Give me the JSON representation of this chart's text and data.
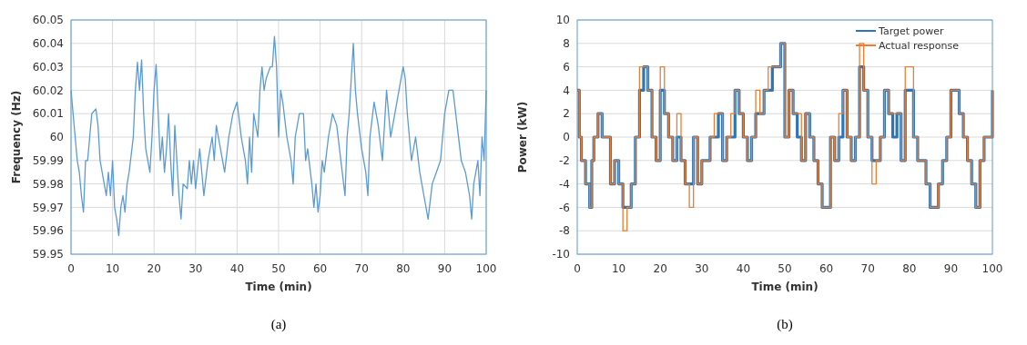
{
  "chart_data": [
    {
      "type": "line",
      "xlabel": "Time (min)",
      "ylabel": "Frequency (Hz)",
      "annotations": [
        "(a)"
      ],
      "xlim": [
        0,
        100
      ],
      "xticks": [
        0,
        10,
        20,
        30,
        40,
        50,
        60,
        70,
        80,
        90,
        100
      ],
      "ylim": [
        59.95,
        60.05
      ],
      "yticks": [
        59.95,
        59.96,
        59.97,
        59.98,
        59.99,
        60,
        60.01,
        60.02,
        60.03,
        60.04,
        60.05
      ],
      "grid": true,
      "legend": false,
      "x": [
        0,
        0.5,
        1,
        1.5,
        2,
        2.5,
        3,
        3.5,
        4,
        4.5,
        5,
        6,
        6.5,
        7,
        8,
        8.5,
        9,
        9.5,
        10,
        10.5,
        11,
        11.5,
        12,
        12.5,
        13,
        13.5,
        14,
        15,
        15.5,
        16,
        16.5,
        17,
        17.5,
        18,
        18.5,
        19,
        19.5,
        20,
        20.5,
        21,
        21.5,
        22,
        22.5,
        23,
        23.5,
        24,
        24.5,
        25,
        25.5,
        26,
        26.5,
        27,
        28,
        28.5,
        29,
        29.5,
        30,
        31,
        31.5,
        32,
        33,
        34,
        34.5,
        35,
        36,
        37,
        38,
        39,
        40,
        41,
        42,
        42.5,
        43,
        43.5,
        44,
        45,
        45.5,
        46,
        46.5,
        47,
        48,
        48.5,
        49,
        49.5,
        50,
        50.5,
        51,
        52,
        53,
        53.5,
        54,
        55,
        56,
        56.5,
        57,
        58,
        58.5,
        59,
        59.5,
        60,
        60.5,
        61,
        62,
        63,
        64,
        65,
        66,
        66.5,
        67,
        68,
        68.5,
        69,
        70,
        71,
        71.5,
        72,
        73,
        74,
        75,
        76,
        77,
        78,
        79,
        80,
        80.5,
        81,
        82,
        83,
        84,
        85,
        85.5,
        86,
        87,
        88,
        89,
        90,
        91,
        92,
        93,
        94,
        95,
        96,
        96.5,
        97,
        98,
        98.5,
        99,
        99.5,
        100
      ],
      "series": [
        {
          "color": "#5b9bd5",
          "values": [
            60.02,
            60.01,
            60,
            59.99,
            59.985,
            59.975,
            59.968,
            59.99,
            59.99,
            60,
            60.01,
            60.012,
            60.005,
            59.99,
            59.98,
            59.975,
            59.985,
            59.975,
            59.99,
            59.97,
            59.965,
            59.958,
            59.97,
            59.975,
            59.968,
            59.98,
            59.985,
            60,
            60.02,
            60.032,
            60.02,
            60.033,
            60.01,
            59.995,
            59.99,
            59.985,
            60,
            60.02,
            60.031,
            60.01,
            59.99,
            60,
            59.985,
            59.995,
            60.01,
            59.99,
            59.975,
            60.005,
            59.99,
            59.975,
            59.965,
            59.98,
            59.978,
            59.99,
            59.98,
            59.99,
            59.978,
            59.995,
            59.985,
            59.975,
            59.99,
            60,
            59.99,
            60.005,
            59.995,
            59.985,
            60,
            60.01,
            60.015,
            60,
            59.99,
            59.98,
            60,
            59.985,
            60.01,
            60,
            60.02,
            60.03,
            60.02,
            60.025,
            60.03,
            60.03,
            60.043,
            60.03,
            60,
            60.02,
            60.015,
            60,
            59.99,
            59.98,
            60,
            60.01,
            60.01,
            59.99,
            59.995,
            59.98,
            59.97,
            59.98,
            59.968,
            59.975,
            59.99,
            59.985,
            60,
            60.01,
            60.005,
            59.99,
            59.975,
            60,
            60.01,
            60.04,
            60.02,
            60.01,
            59.995,
            59.985,
            59.975,
            60,
            60.015,
            60.005,
            59.99,
            60.02,
            60,
            60.01,
            60.02,
            60.03,
            60.025,
            60.01,
            59.99,
            60,
            59.985,
            59.975,
            59.97,
            59.965,
            59.98,
            59.985,
            59.99,
            60.01,
            60.02,
            60.02,
            60.005,
            59.99,
            59.985,
            59.975,
            59.965,
            59.98,
            59.99,
            59.975,
            60,
            59.99,
            60.02
          ]
        }
      ]
    },
    {
      "type": "step",
      "xlabel": "Time (min)",
      "ylabel": "Power (kW)",
      "annotations": [
        "(b)"
      ],
      "xlim": [
        0,
        100
      ],
      "xticks": [
        0,
        10,
        20,
        30,
        40,
        50,
        60,
        70,
        80,
        90,
        100
      ],
      "ylim": [
        -10,
        10
      ],
      "yticks": [
        -10,
        -8,
        -6,
        -4,
        -2,
        0,
        2,
        4,
        6,
        8,
        10
      ],
      "grid": "y",
      "legend": "top right",
      "x": [
        0,
        0.5,
        1,
        2,
        3,
        3.5,
        4,
        5,
        6,
        7,
        8,
        9,
        10,
        11,
        12,
        13,
        14,
        15,
        16,
        17,
        18,
        19,
        20,
        21,
        22,
        23,
        24,
        25,
        26,
        27,
        28,
        29,
        30,
        32,
        33,
        34,
        35,
        36,
        37,
        38,
        39,
        40,
        41,
        42,
        43,
        44,
        45,
        46,
        47,
        48,
        49,
        50,
        51,
        52,
        53,
        54,
        55,
        56,
        57,
        58,
        59,
        60,
        61,
        62,
        63,
        64,
        65,
        66,
        67,
        68,
        69,
        70,
        71,
        72,
        73,
        74,
        75,
        76,
        77,
        78,
        79,
        80,
        81,
        82,
        83,
        84,
        85,
        86,
        87,
        88,
        89,
        90,
        91,
        92,
        93,
        94,
        95,
        96,
        97,
        98,
        99,
        100
      ],
      "series": [
        {
          "name": "Target power",
          "color": "#2e75b6",
          "values": [
            4,
            0,
            -2,
            -4,
            -6,
            -2,
            0,
            2,
            0,
            0,
            -4,
            -2,
            -4,
            -6,
            -6,
            -4,
            0,
            4,
            6,
            4,
            0,
            -2,
            4,
            2,
            0,
            -2,
            0,
            -2,
            -4,
            -4,
            0,
            -4,
            -2,
            0,
            0,
            2,
            -2,
            0,
            0,
            4,
            2,
            0,
            -2,
            0,
            2,
            2,
            4,
            4,
            6,
            6,
            8,
            0,
            4,
            2,
            0,
            -2,
            2,
            0,
            -2,
            -4,
            -6,
            -6,
            0,
            -2,
            0,
            4,
            0,
            -2,
            0,
            6,
            4,
            0,
            -2,
            -2,
            0,
            4,
            2,
            0,
            2,
            -2,
            4,
            4,
            0,
            -2,
            -2,
            -4,
            -6,
            -6,
            -4,
            -2,
            0,
            4,
            4,
            2,
            0,
            -2,
            -4,
            -6,
            -2,
            0,
            0,
            4
          ]
        },
        {
          "name": "Actual response",
          "color": "#ed7d31",
          "values": [
            4,
            0,
            -2,
            -4,
            -6,
            -2,
            0,
            2,
            0,
            0,
            -4,
            -2,
            -4,
            -8,
            -6,
            -4,
            0,
            6,
            6,
            4,
            0,
            -2,
            6,
            2,
            0,
            -2,
            2,
            -2,
            -4,
            -6,
            0,
            -4,
            -2,
            0,
            2,
            2,
            -2,
            0,
            2,
            4,
            2,
            0,
            -2,
            0,
            4,
            2,
            4,
            6,
            6,
            6,
            8,
            0,
            4,
            2,
            2,
            -2,
            2,
            0,
            -2,
            -4,
            -6,
            -6,
            0,
            -2,
            2,
            4,
            0,
            -2,
            0,
            8,
            4,
            0,
            -4,
            -2,
            0,
            4,
            2,
            2,
            2,
            -2,
            6,
            6,
            0,
            -2,
            -2,
            -4,
            -6,
            -6,
            -4,
            -2,
            0,
            4,
            4,
            2,
            0,
            -2,
            -4,
            -6,
            -2,
            0,
            0,
            4
          ]
        }
      ]
    }
  ]
}
